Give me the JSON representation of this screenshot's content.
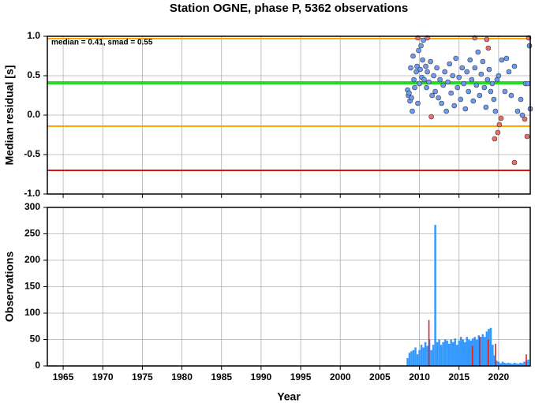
{
  "chart_data": [
    {
      "type": "scatter",
      "title": "Station OGNE, phase P, 5362 observations",
      "y_label": "Median residual [s]",
      "annotation": "median = 0.41, smad = 0.55",
      "xlim": [
        1963,
        2024
      ],
      "xticks": [
        1965,
        1970,
        1975,
        1980,
        1985,
        1990,
        1995,
        2000,
        2005,
        2010,
        2015,
        2020
      ],
      "ylim": [
        -1,
        1
      ],
      "yticks": [
        {
          "value": -1,
          "label": "-1.0"
        },
        {
          "value": -0.5,
          "label": "-0.5"
        },
        {
          "value": 0,
          "label": "0.0"
        },
        {
          "value": 0.5,
          "label": "0.5"
        },
        {
          "value": 1,
          "label": "1.0"
        }
      ],
      "grid": true,
      "hlines": [
        {
          "value": 0.97,
          "color": "#ffa500"
        },
        {
          "value": 0.41,
          "color": "#22dd22"
        },
        {
          "value": -0.14,
          "color": "#ffa500"
        },
        {
          "value": -0.7,
          "color": "#e01010"
        }
      ],
      "series": [
        {
          "color": "#6c9cf0",
          "x": [
            2008.5,
            2008.6,
            2008.7,
            2008.8,
            2008.9,
            2009.0,
            2009.1,
            2009.2,
            2009.3,
            2009.4,
            2009.6,
            2009.7,
            2009.8,
            2009.9,
            2010.0,
            2010.1,
            2010.2,
            2010.3,
            2010.4,
            2010.5,
            2010.6,
            2010.8,
            2010.9,
            2011.0,
            2011.2,
            2011.4,
            2011.6,
            2011.8,
            2012.0,
            2012.2,
            2012.4,
            2012.6,
            2012.8,
            2013.0,
            2013.2,
            2013.4,
            2013.6,
            2013.8,
            2014.0,
            2014.2,
            2014.4,
            2014.6,
            2014.8,
            2015.0,
            2015.2,
            2015.4,
            2015.6,
            2015.8,
            2016.0,
            2016.2,
            2016.4,
            2016.6,
            2016.8,
            2017.0,
            2017.2,
            2017.4,
            2017.6,
            2017.8,
            2018.0,
            2018.2,
            2018.4,
            2018.6,
            2018.8,
            2019.0,
            2019.2,
            2019.4,
            2019.6,
            2019.8,
            2020.0,
            2020.4,
            2020.8,
            2021.0,
            2021.3,
            2021.6,
            2022.0,
            2022.4,
            2022.8,
            2023.0,
            2023.4,
            2023.7,
            2023.9,
            2024.0
          ],
          "values": [
            0.32,
            0.25,
            0.28,
            0.18,
            0.6,
            0.22,
            0.05,
            0.75,
            0.45,
            0.35,
            0.55,
            0.62,
            0.15,
            0.82,
            0.4,
            0.58,
            0.88,
            0.48,
            0.7,
            0.95,
            0.45,
            0.62,
            0.35,
            0.55,
            0.42,
            0.68,
            0.25,
            0.5,
            0.3,
            0.6,
            0.22,
            0.45,
            0.15,
            0.38,
            0.55,
            0.05,
            0.42,
            0.65,
            0.28,
            0.5,
            0.12,
            0.72,
            0.35,
            0.48,
            0.2,
            0.6,
            0.4,
            0.08,
            0.55,
            0.3,
            0.7,
            0.45,
            0.18,
            0.6,
            0.38,
            0.8,
            0.25,
            0.52,
            0.68,
            0.35,
            0.1,
            0.45,
            0.58,
            0.3,
            0.4,
            0.2,
            0.05,
            0.45,
            0.5,
            0.7,
            0.3,
            0.72,
            0.55,
            0.25,
            0.62,
            0.05,
            0.2,
            0,
            0.4,
            0.4,
            0.88,
            0.08
          ]
        },
        {
          "color": "#f07060",
          "x": [
            2009.8,
            2011.0,
            2011.5,
            2017.0,
            2018.5,
            2018.7,
            2019.5,
            2019.9,
            2020.1,
            2020.3,
            2022.0,
            2023.3,
            2023.6,
            2023.8
          ],
          "values": [
            0.98,
            0.98,
            -0.02,
            0.98,
            0.96,
            0.85,
            -0.3,
            -0.22,
            -0.12,
            -0.04,
            -0.6,
            -0.05,
            -0.27,
            0.98
          ]
        }
      ]
    },
    {
      "type": "bar",
      "y_label": "Observations",
      "x_label": "Year",
      "xlim": [
        1963,
        2024
      ],
      "xticks": [
        1965,
        1970,
        1975,
        1980,
        1985,
        1990,
        1995,
        2000,
        2005,
        2010,
        2015,
        2020
      ],
      "ylim": [
        0,
        300
      ],
      "yticks": [
        0,
        50,
        100,
        150,
        200,
        250,
        300
      ],
      "grid": true,
      "series": [
        {
          "color": "#3399ff",
          "x": [
            2008.5,
            2008.75,
            2009,
            2009.25,
            2009.5,
            2009.75,
            2010,
            2010.25,
            2010.5,
            2010.75,
            2011,
            2011.25,
            2011.5,
            2011.75,
            2012,
            2012.25,
            2012.5,
            2012.75,
            2013,
            2013.25,
            2013.5,
            2013.75,
            2014,
            2014.25,
            2014.5,
            2014.75,
            2015,
            2015.25,
            2015.5,
            2015.75,
            2016,
            2016.25,
            2016.5,
            2016.75,
            2017,
            2017.25,
            2017.5,
            2017.75,
            2018,
            2018.25,
            2018.5,
            2018.75,
            2019,
            2019.25,
            2019.5,
            2019.75,
            2020,
            2020.25,
            2020.5,
            2020.75,
            2021,
            2021.25,
            2021.5,
            2021.75,
            2022,
            2022.25,
            2022.5,
            2022.75,
            2023,
            2023.25,
            2023.5,
            2023.75
          ],
          "values": [
            15,
            25,
            28,
            30,
            35,
            22,
            30,
            40,
            35,
            45,
            38,
            50,
            30,
            40,
            267,
            45,
            50,
            40,
            45,
            50,
            48,
            42,
            50,
            45,
            52,
            40,
            48,
            55,
            50,
            45,
            55,
            50,
            48,
            52,
            55,
            50,
            58,
            55,
            60,
            55,
            65,
            70,
            72,
            40,
            20,
            10,
            8,
            5,
            8,
            6,
            5,
            6,
            5,
            4,
            6,
            5,
            4,
            6,
            5,
            8,
            10,
            12
          ]
        },
        {
          "color": "#dd2222",
          "x": [
            2011.2,
            2016.7,
            2017.6,
            2018.7,
            2019.6,
            2023.5
          ],
          "values": [
            87,
            38,
            55,
            50,
            42,
            22
          ]
        }
      ]
    }
  ]
}
